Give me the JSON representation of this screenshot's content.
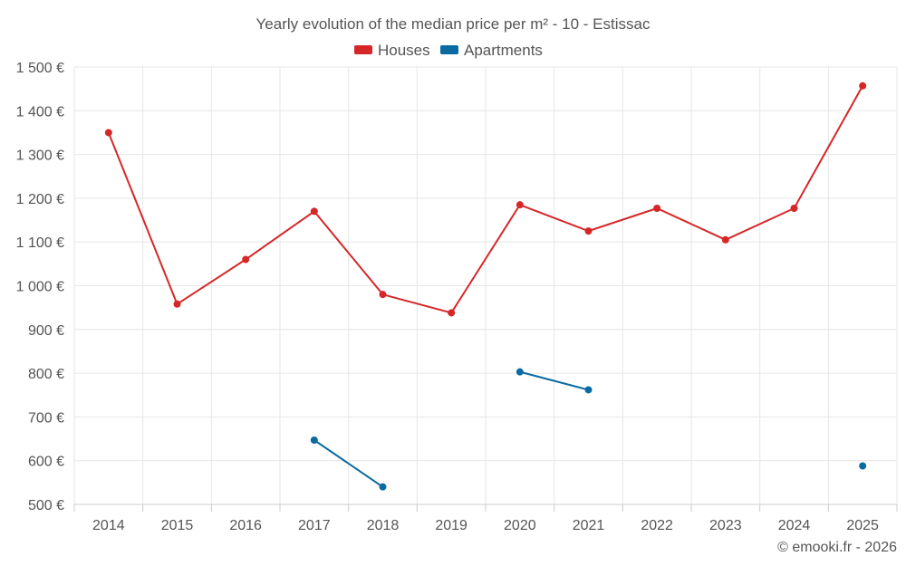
{
  "chart_data": {
    "type": "line",
    "title": "Yearly evolution of the median price per m² - 10 - Estissac",
    "categories": [
      "2014",
      "2015",
      "2016",
      "2017",
      "2018",
      "2019",
      "2020",
      "2021",
      "2022",
      "2023",
      "2024",
      "2025"
    ],
    "series": [
      {
        "name": "Houses",
        "color": "#d62728",
        "values": [
          1350,
          958,
          1060,
          1170,
          980,
          938,
          1185,
          1125,
          1177,
          1105,
          1177,
          1457
        ]
      },
      {
        "name": "Apartments",
        "color": "#0a6aa1",
        "values": [
          null,
          null,
          null,
          647,
          540,
          null,
          803,
          762,
          null,
          null,
          null,
          588
        ]
      }
    ],
    "yticks": [
      "500 €",
      "600 €",
      "700 €",
      "800 €",
      "900 €",
      "1 000 €",
      "1 100 €",
      "1 200 €",
      "1 300 €",
      "1 400 €",
      "1 500 €"
    ],
    "ylim": [
      500,
      1500
    ],
    "ystep": 100,
    "xlabel": "",
    "ylabel": "",
    "legend_position": "top-center",
    "grid": true
  },
  "credit": "© emooki.fr - 2026"
}
